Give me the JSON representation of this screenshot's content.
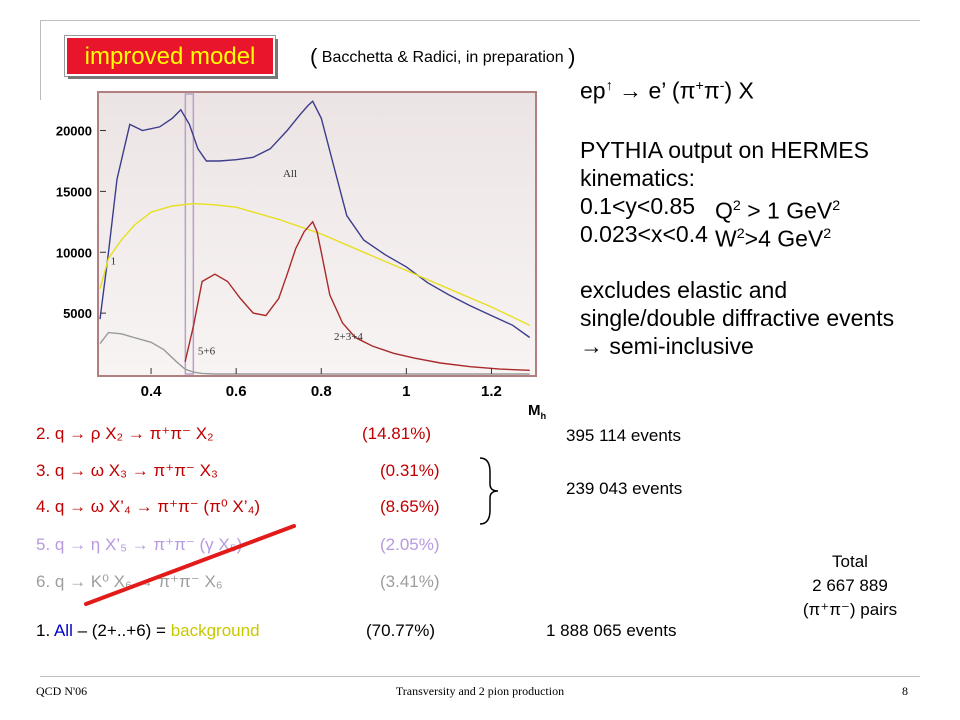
{
  "slide": {
    "badge": "improved model",
    "citation": "Bacchetta & Radici, in preparation",
    "reaction": {
      "lhs": "ep",
      "arrow_up": "↑",
      "mid": " → e’ (",
      "pi": "π",
      "plus": "+",
      "minus": "-",
      "end": ") X"
    },
    "desc": {
      "line1": "PYTHIA output on HERMES",
      "line2": "kinematics:",
      "line3a": "0.1<y<0.85",
      "line3b": "Q",
      "line3b_sup": "2",
      "line3c": " > 1 GeV",
      "line3c_sup": "2",
      "line4a": "0.023<x<0.4",
      "line4b": "W",
      "line4b_sup": "2",
      "line4c": ">4 GeV",
      "line4c_sup": "2",
      "line5": "excludes elastic and",
      "line6": "single/double diffractive events",
      "line7": "→ semi-inclusive"
    },
    "mh_label": "M",
    "mh_sub": "h",
    "channels": [
      {
        "text": "2. q → ρ X₂ → π⁺π⁻ X₂",
        "pct": "(14.81%)",
        "color": "#c00000"
      },
      {
        "text": "3. q → ω X₃ → π⁺π⁻ X₃",
        "pct": "(0.31%)",
        "color": "#c00000"
      },
      {
        "text": "4. q → ω X’₄ → π⁺π⁻ (π⁰ X’₄)",
        "pct": "(8.65%)",
        "color": "#c00000"
      },
      {
        "text": "5. q → η X’₅ → π⁺π⁻ (γ X₅)",
        "pct": "(2.05%)",
        "color": "#b89ae0"
      },
      {
        "text": "6. q → K⁰ X₆ → π⁺π⁻ X₆",
        "pct": "(3.41%)",
        "color": "#9e9e9e"
      }
    ],
    "bg_line": {
      "prefix": "1. ",
      "all": "All",
      "mid": " – (2+..+6) = ",
      "bg": "background",
      "pct": "(70.77%)"
    },
    "events": {
      "e1": "395 114  events",
      "e2": "239 043  events",
      "e3": "1 888 065  events"
    },
    "total": {
      "label": "Total",
      "value": "2 667 889",
      "pairs": "(π⁺π⁻) pairs"
    },
    "footer": {
      "left": "QCD N'06",
      "center": "Transversity and 2 pion production",
      "page": "8"
    },
    "colors": {
      "badge_bg": "#e8152c",
      "badge_text": "#ffff00",
      "all": "#0000cc",
      "background": "#c8c800",
      "strike": "#e21a1a"
    }
  },
  "chart_data": {
    "type": "line",
    "x_ticks": [
      "0.4",
      "0.6",
      "0.8",
      "1",
      "1.2"
    ],
    "y_ticks": [
      "5000",
      "10000",
      "15000",
      "20000"
    ],
    "xlim": [
      0.28,
      1.3
    ],
    "ylim": [
      0,
      23000
    ],
    "curve_labels": [
      "All",
      "1",
      "2+3+4",
      "5+6"
    ],
    "series": [
      {
        "name": "All",
        "color": "#3c3c8c",
        "x": [
          0.28,
          0.3,
          0.32,
          0.35,
          0.38,
          0.42,
          0.45,
          0.47,
          0.49,
          0.51,
          0.53,
          0.56,
          0.6,
          0.64,
          0.68,
          0.72,
          0.75,
          0.77,
          0.78,
          0.8,
          0.83,
          0.86,
          0.9,
          0.95,
          1.0,
          1.05,
          1.1,
          1.15,
          1.2,
          1.25,
          1.29
        ],
        "y": [
          4500,
          10000,
          16000,
          20500,
          20000,
          20300,
          21000,
          21700,
          20500,
          18500,
          17500,
          17500,
          17600,
          17800,
          18500,
          20000,
          21300,
          22100,
          22400,
          21000,
          17000,
          13000,
          11000,
          9800,
          8800,
          7500,
          6500,
          5600,
          4800,
          4000,
          3000
        ]
      },
      {
        "name": "1",
        "color": "#e6e020",
        "x": [
          0.28,
          0.3,
          0.33,
          0.36,
          0.4,
          0.45,
          0.5,
          0.55,
          0.6,
          0.7,
          0.8,
          0.9,
          1.0,
          1.1,
          1.2,
          1.29
        ],
        "y": [
          7000,
          9500,
          11000,
          12200,
          13300,
          13800,
          14000,
          13900,
          13700,
          12700,
          11500,
          10000,
          8500,
          7000,
          5500,
          4000
        ]
      },
      {
        "name": "2+3+4",
        "color": "#aa2a2a",
        "x": [
          0.48,
          0.5,
          0.52,
          0.55,
          0.58,
          0.61,
          0.64,
          0.67,
          0.7,
          0.72,
          0.74,
          0.76,
          0.78,
          0.79,
          0.8,
          0.82,
          0.85,
          0.88,
          0.92,
          0.97,
          1.02,
          1.08,
          1.15,
          1.22,
          1.29
        ],
        "y": [
          1000,
          4000,
          7600,
          8200,
          7600,
          6200,
          5000,
          4800,
          6200,
          8200,
          10300,
          11700,
          12500,
          11700,
          10000,
          6500,
          4200,
          3000,
          2300,
          1700,
          1300,
          900,
          600,
          400,
          300
        ]
      },
      {
        "name": "5+6",
        "color": "#9a9a9a",
        "x": [
          0.28,
          0.3,
          0.33,
          0.36,
          0.4,
          0.43,
          0.46,
          0.48,
          0.5,
          0.52,
          0.55,
          0.6,
          0.7,
          0.8,
          0.9,
          1.0,
          1.1,
          1.2,
          1.29
        ],
        "y": [
          2500,
          3400,
          3300,
          3000,
          2600,
          2000,
          1000,
          400,
          150,
          50,
          0,
          0,
          0,
          0,
          0,
          0,
          0,
          0,
          0
        ]
      }
    ]
  }
}
